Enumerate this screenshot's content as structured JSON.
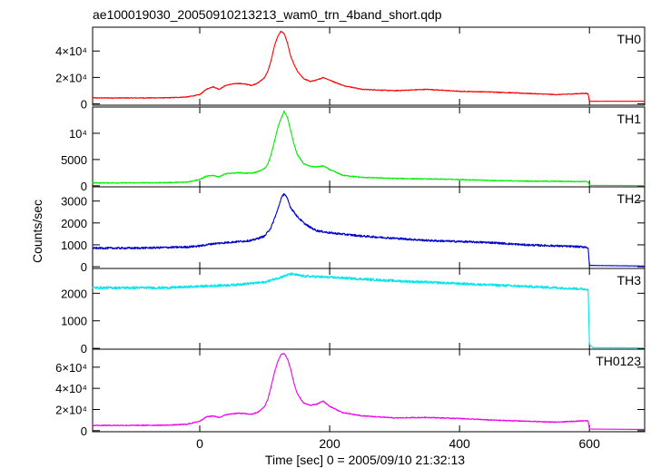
{
  "chart_data": {
    "type": "line",
    "title": "ae100019030_20050910213213_wam0_trn_4band_short.qdp",
    "xlabel": "Time [sec] 0 = 2005/09/10 21:32:13",
    "ylabel": "Counts/sec",
    "xlim": [
      -165,
      685
    ],
    "x_ticks": [
      0,
      200,
      400,
      600
    ],
    "x_tick_labels": [
      "0",
      "200",
      "400",
      "600"
    ],
    "panels": [
      {
        "name": "TH0",
        "color": "#ff0000",
        "ylim": [
          -1000,
          58000
        ],
        "y_ticks": [
          0,
          20000,
          40000
        ],
        "y_tick_labels": [
          "0",
          "2×10⁴",
          "4×10⁴"
        ],
        "noise": 300,
        "x": [
          -165,
          -100,
          -50,
          -20,
          0,
          10,
          20,
          30,
          40,
          50,
          60,
          70,
          80,
          90,
          100,
          105,
          110,
          115,
          120,
          125,
          130,
          135,
          140,
          145,
          150,
          160,
          170,
          180,
          190,
          200,
          220,
          250,
          300,
          350,
          400,
          450,
          500,
          550,
          595,
          598,
          600,
          685
        ],
        "y": [
          4500,
          4500,
          4600,
          5200,
          7000,
          11000,
          13000,
          11000,
          14000,
          15000,
          15500,
          15000,
          14000,
          16000,
          20000,
          25000,
          33000,
          44000,
          51000,
          55000,
          53000,
          46000,
          36000,
          30000,
          25000,
          19000,
          17000,
          18000,
          20000,
          18000,
          14000,
          11000,
          10000,
          11000,
          9500,
          9000,
          8000,
          7000,
          8000,
          7500,
          2000,
          2000
        ]
      },
      {
        "name": "TH1",
        "color": "#00ee00",
        "ylim": [
          -200,
          15000
        ],
        "y_ticks": [
          0,
          5000,
          10000
        ],
        "y_tick_labels": [
          "0",
          "5000",
          "10⁴"
        ],
        "noise": 90,
        "x": [
          -165,
          -100,
          -50,
          -20,
          0,
          10,
          20,
          30,
          40,
          50,
          60,
          70,
          80,
          90,
          100,
          105,
          110,
          115,
          120,
          125,
          130,
          135,
          140,
          145,
          150,
          160,
          170,
          180,
          190,
          200,
          220,
          250,
          300,
          350,
          400,
          450,
          500,
          550,
          595,
          598,
          600,
          685
        ],
        "y": [
          550,
          550,
          600,
          700,
          1200,
          1800,
          2000,
          1700,
          2300,
          2400,
          2500,
          2400,
          2400,
          2700,
          3300,
          4200,
          6000,
          8500,
          11000,
          12800,
          14200,
          13000,
          10500,
          8000,
          6000,
          4200,
          3700,
          3600,
          3800,
          3100,
          2000,
          1600,
          1400,
          1300,
          1200,
          1000,
          900,
          850,
          800,
          700,
          80,
          50
        ]
      },
      {
        "name": "TH2",
        "color": "#0000cc",
        "ylim": [
          -80,
          3650
        ],
        "y_ticks": [
          0,
          1000,
          2000,
          3000
        ],
        "y_tick_labels": [
          "0",
          "1000",
          "2000",
          "3000"
        ],
        "noise": 45,
        "x": [
          -165,
          -100,
          -50,
          -20,
          0,
          20,
          40,
          60,
          80,
          100,
          110,
          120,
          125,
          130,
          135,
          140,
          150,
          160,
          170,
          180,
          200,
          250,
          300,
          350,
          400,
          450,
          500,
          550,
          595,
          598,
          600,
          685
        ],
        "y": [
          850,
          850,
          880,
          900,
          950,
          1050,
          1100,
          1150,
          1200,
          1400,
          1800,
          2600,
          3100,
          3350,
          3100,
          2700,
          2300,
          2000,
          1800,
          1650,
          1550,
          1400,
          1300,
          1200,
          1150,
          1100,
          1000,
          950,
          900,
          850,
          60,
          30
        ]
      },
      {
        "name": "TH3",
        "color": "#00e5ee",
        "ylim": [
          -30,
          2900
        ],
        "y_ticks": [
          0,
          1000,
          2000
        ],
        "y_tick_labels": [
          "0",
          "1000",
          "2000"
        ],
        "noise": 45,
        "x": [
          -165,
          -100,
          -50,
          0,
          50,
          100,
          120,
          140,
          160,
          200,
          300,
          400,
          500,
          550,
          595,
          598,
          600,
          605,
          685
        ],
        "y": [
          2200,
          2200,
          2200,
          2250,
          2300,
          2400,
          2550,
          2700,
          2620,
          2580,
          2450,
          2350,
          2250,
          2200,
          2150,
          2150,
          150,
          25,
          20
        ]
      },
      {
        "name": "TH0123",
        "color": "#ee00ee",
        "ylim": [
          -1000,
          77000
        ],
        "y_ticks": [
          0,
          20000,
          40000,
          60000
        ],
        "y_tick_labels": [
          "0",
          "2×10⁴",
          "4×10⁴",
          "6×10⁴"
        ],
        "noise": 450,
        "x": [
          -165,
          -100,
          -50,
          -20,
          0,
          10,
          20,
          30,
          40,
          50,
          60,
          70,
          80,
          90,
          100,
          105,
          110,
          115,
          120,
          125,
          130,
          135,
          140,
          145,
          150,
          160,
          170,
          180,
          190,
          200,
          220,
          250,
          300,
          350,
          400,
          450,
          500,
          550,
          595,
          598,
          600,
          685
        ],
        "y": [
          5000,
          5000,
          5200,
          6000,
          9000,
          13000,
          14000,
          12500,
          15000,
          16000,
          16500,
          16000,
          15500,
          17500,
          23000,
          30000,
          42000,
          55000,
          65000,
          72000,
          73000,
          68000,
          58000,
          45000,
          35000,
          26000,
          24000,
          25000,
          28000,
          23000,
          17000,
          14000,
          12000,
          12500,
          11500,
          10000,
          9000,
          8000,
          9500,
          9000,
          1500,
          1200
        ]
      }
    ]
  }
}
